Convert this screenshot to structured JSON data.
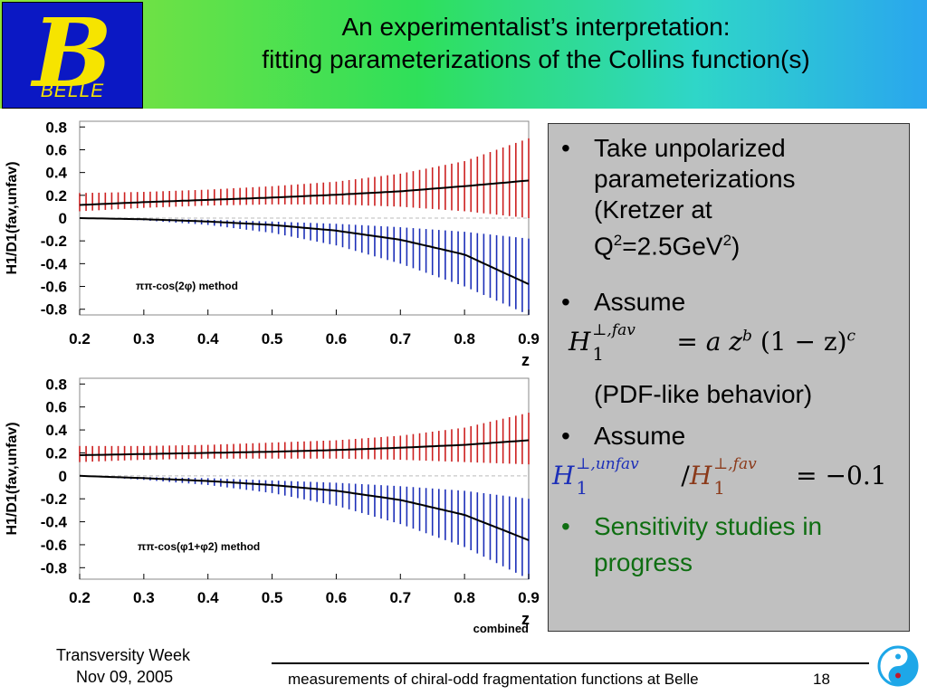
{
  "header": {
    "logo_text": "BELLE",
    "logo_letter": "B",
    "title_line1": "An experimentalist’s interpretation:",
    "title_line2": "fitting parameterizations of the Collins function(s)"
  },
  "chart_data": [
    {
      "type": "line",
      "method_label": "ππ-cos(2φ) method",
      "xlabel": "z",
      "ylabel": "H1/D1(fav,unfav)",
      "xlim": [
        0.2,
        0.9
      ],
      "ylim": [
        -0.85,
        0.85
      ],
      "x_ticks": [
        "0.2",
        "0.3",
        "0.4",
        "0.5",
        "0.6",
        "0.7",
        "0.8",
        "0.9"
      ],
      "y_ticks": [
        "0.8",
        "0.6",
        "0.4",
        "0.2",
        "0",
        "-0.2",
        "-0.4",
        "-0.6",
        "-0.8"
      ],
      "grid": false,
      "series": [
        {
          "band_color": "#cc2020",
          "x": [
            0.2,
            0.3,
            0.4,
            0.5,
            0.6,
            0.7,
            0.8,
            0.9
          ],
          "y": [
            0.115,
            0.14,
            0.16,
            0.18,
            0.205,
            0.235,
            0.28,
            0.33
          ],
          "lower": [
            0.06,
            0.09,
            0.11,
            0.12,
            0.12,
            0.1,
            0.06,
            0.0
          ],
          "upper": [
            0.22,
            0.23,
            0.25,
            0.28,
            0.32,
            0.39,
            0.5,
            0.7
          ]
        },
        {
          "band_color": "#1c2fb8",
          "x": [
            0.2,
            0.3,
            0.4,
            0.5,
            0.6,
            0.7,
            0.8,
            0.9
          ],
          "y": [
            0.0,
            -0.01,
            -0.03,
            -0.06,
            -0.11,
            -0.19,
            -0.32,
            -0.58
          ],
          "lower": [
            0.0,
            -0.02,
            -0.06,
            -0.13,
            -0.24,
            -0.4,
            -0.6,
            -0.85
          ],
          "upper": [
            0.0,
            -0.005,
            -0.015,
            -0.03,
            -0.05,
            -0.08,
            -0.12,
            -0.18
          ]
        }
      ]
    },
    {
      "type": "line",
      "method_label": "ππ-cos(φ1+φ2) method",
      "xlabel": "z",
      "ylabel": "H1/D1(fav,unfav)",
      "xlim": [
        0.2,
        0.9
      ],
      "ylim": [
        -0.9,
        0.85
      ],
      "x_ticks": [
        "0.2",
        "0.3",
        "0.4",
        "0.5",
        "0.6",
        "0.7",
        "0.8",
        "0.9"
      ],
      "y_ticks": [
        "0.8",
        "0.6",
        "0.4",
        "0.2",
        "0",
        "-0.2",
        "-0.4",
        "-0.6",
        "-0.8"
      ],
      "grid": false,
      "extra_label": "combined",
      "series": [
        {
          "band_color": "#cc2020",
          "x": [
            0.2,
            0.3,
            0.4,
            0.5,
            0.6,
            0.7,
            0.8,
            0.9
          ],
          "y": [
            0.18,
            0.19,
            0.2,
            0.21,
            0.225,
            0.245,
            0.27,
            0.31
          ],
          "lower": [
            0.12,
            0.14,
            0.15,
            0.15,
            0.15,
            0.14,
            0.12,
            0.1
          ],
          "upper": [
            0.26,
            0.26,
            0.27,
            0.29,
            0.31,
            0.35,
            0.42,
            0.55
          ]
        },
        {
          "band_color": "#1c2fb8",
          "x": [
            0.2,
            0.3,
            0.4,
            0.5,
            0.6,
            0.7,
            0.8,
            0.9
          ],
          "y": [
            0.0,
            -0.02,
            -0.045,
            -0.08,
            -0.13,
            -0.21,
            -0.34,
            -0.56
          ],
          "lower": [
            0.0,
            -0.035,
            -0.08,
            -0.15,
            -0.26,
            -0.42,
            -0.62,
            -0.9
          ],
          "upper": [
            0.0,
            -0.01,
            -0.02,
            -0.04,
            -0.06,
            -0.09,
            -0.13,
            -0.2
          ]
        }
      ]
    }
  ],
  "bullets": {
    "b1_line1": "Take unpolarized",
    "b1_line2": "parameterizations",
    "b1_line3": "(Kretzer at",
    "b1_line4_a": "Q",
    "b1_line4_sup1": "2",
    "b1_line4_b": "=2.5GeV",
    "b1_line4_sup2": "2",
    "b1_line4_c": ")",
    "b2_line1": "Assume",
    "f1_H": "H",
    "f1_sub": "1",
    "f1_sup": "⊥,fav",
    "f1_rest_a": " = ",
    "f1_a": "a",
    "f1_z": " z",
    "f1_b": "b",
    "f1_rest_b": " (1 − z)",
    "f1_c": "c",
    "b2_line2": "(PDF-like behavior)",
    "b3_line1": "Assume",
    "f2_H1": "H",
    "f2_sub1": "1",
    "f2_sup1": "⊥,unfav",
    "f2_slash": "/",
    "f2_H2": "H",
    "f2_sub2": "1",
    "f2_sup2": "⊥,fav",
    "f2_rest": " = −0.1",
    "b4_line1": "Sensitivity studies in",
    "b4_line2": "progress",
    "bullet_char": "•",
    "color_blue": "#1c2fb8",
    "color_brown": "#8b3a1a",
    "color_green": "#0f6e12"
  },
  "footer": {
    "conference": "Transversity Week",
    "date": "Nov 09, 2005",
    "talk": "measurements of chiral-odd fragmentation functions at Belle",
    "page": "18"
  }
}
